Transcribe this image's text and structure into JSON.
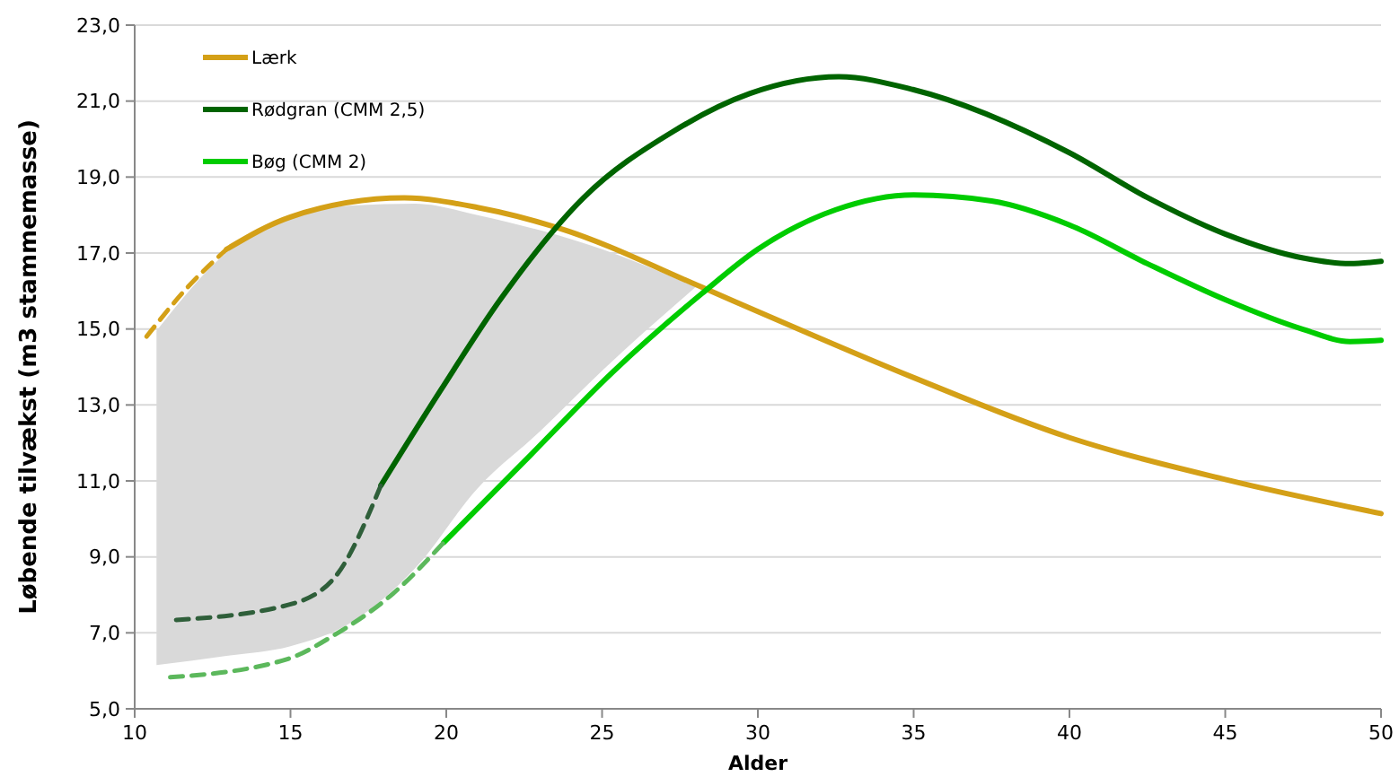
{
  "chart_data": {
    "type": "line",
    "xlabel": "Alder",
    "ylabel": "Løbende tilvækst (m3 stammemasse)",
    "xlim": [
      10,
      50
    ],
    "xticks": [
      10,
      15,
      20,
      25,
      30,
      35,
      40,
      45,
      50
    ],
    "ylim": [
      5,
      23
    ],
    "yticks": [
      {
        "value": 5,
        "label": "5,0"
      },
      {
        "value": 7,
        "label": "7,0"
      },
      {
        "value": 9,
        "label": "9,0"
      },
      {
        "value": 11,
        "label": "11,0"
      },
      {
        "value": 13,
        "label": "13,0"
      },
      {
        "value": 15,
        "label": "15,0"
      },
      {
        "value": 17,
        "label": "17,0"
      },
      {
        "value": 19,
        "label": "19,0"
      },
      {
        "value": 21,
        "label": "21,0"
      },
      {
        "value": 23,
        "label": "23,0"
      }
    ],
    "grid": "y",
    "legend": "top left",
    "marker": "none",
    "series": [
      {
        "color": "#d9d9d9",
        "x": [
          10.7,
          13,
          15,
          17,
          19,
          21,
          23,
          25,
          28
        ],
        "values": [
          null,
          null,
          null,
          null,
          null,
          null,
          null,
          null,
          null
        ],
        "upper": [
          14.95,
          17.05,
          17.95,
          18.25,
          18.3,
          18.0,
          17.6,
          17.1,
          16.1
        ],
        "lower": [
          6.15,
          6.4,
          6.65,
          7.3,
          8.7,
          10.8,
          12.3,
          13.9,
          16.1
        ]
      },
      {
        "name": "Lærk",
        "color": "#d4a017",
        "line_style": "solid",
        "x": [
          12.95,
          15,
          18.65,
          21,
          23.6,
          28.2,
          30,
          35,
          40,
          45,
          50
        ],
        "values": [
          17.1,
          17.95,
          18.45,
          18.2,
          17.66,
          16.1,
          15.46,
          13.72,
          12.14,
          11.04,
          10.14
        ]
      },
      {
        "color": "#d4a017",
        "line_style": "dashed",
        "x": [
          10.38,
          11.7,
          12.95
        ],
        "values": [
          14.8,
          16.1,
          17.1
        ]
      },
      {
        "name": "Rødgran (CMM 2,5)",
        "color": "#006400",
        "line_style": "solid",
        "x": [
          17.9,
          19.83,
          21.73,
          24.4,
          27.26,
          29.75,
          32.6,
          35,
          40,
          42.5,
          45,
          47.5,
          49,
          50
        ],
        "values": [
          10.88,
          13.4,
          15.77,
          18.45,
          20.19,
          21.2,
          21.64,
          21.3,
          19.64,
          18.46,
          17.5,
          16.87,
          16.72,
          16.78
        ]
      },
      {
        "color": "#2f5f3a",
        "line_style": "dashed",
        "x": [
          11.33,
          14.9,
          16.4,
          17.9
        ],
        "values": [
          7.34,
          7.73,
          8.44,
          10.88
        ]
      },
      {
        "name": "Bøg (CMM 2)",
        "color": "#00cc00",
        "line_style": "solid",
        "x": [
          19.92,
          22.5,
          25.36,
          28.2,
          30,
          32.5,
          35,
          37.5,
          40,
          42.5,
          45,
          47.5,
          49,
          50
        ],
        "values": [
          9.38,
          11.51,
          13.88,
          15.93,
          17.1,
          18.14,
          18.53,
          18.37,
          17.74,
          16.72,
          15.77,
          14.99,
          14.67,
          14.7
        ]
      },
      {
        "color": "#5cb85c",
        "line_style": "dashed",
        "x": [
          11.14,
          14.9,
          16.4,
          18.3,
          19.92
        ],
        "values": [
          5.83,
          6.31,
          6.94,
          8.04,
          9.38
        ]
      }
    ]
  }
}
